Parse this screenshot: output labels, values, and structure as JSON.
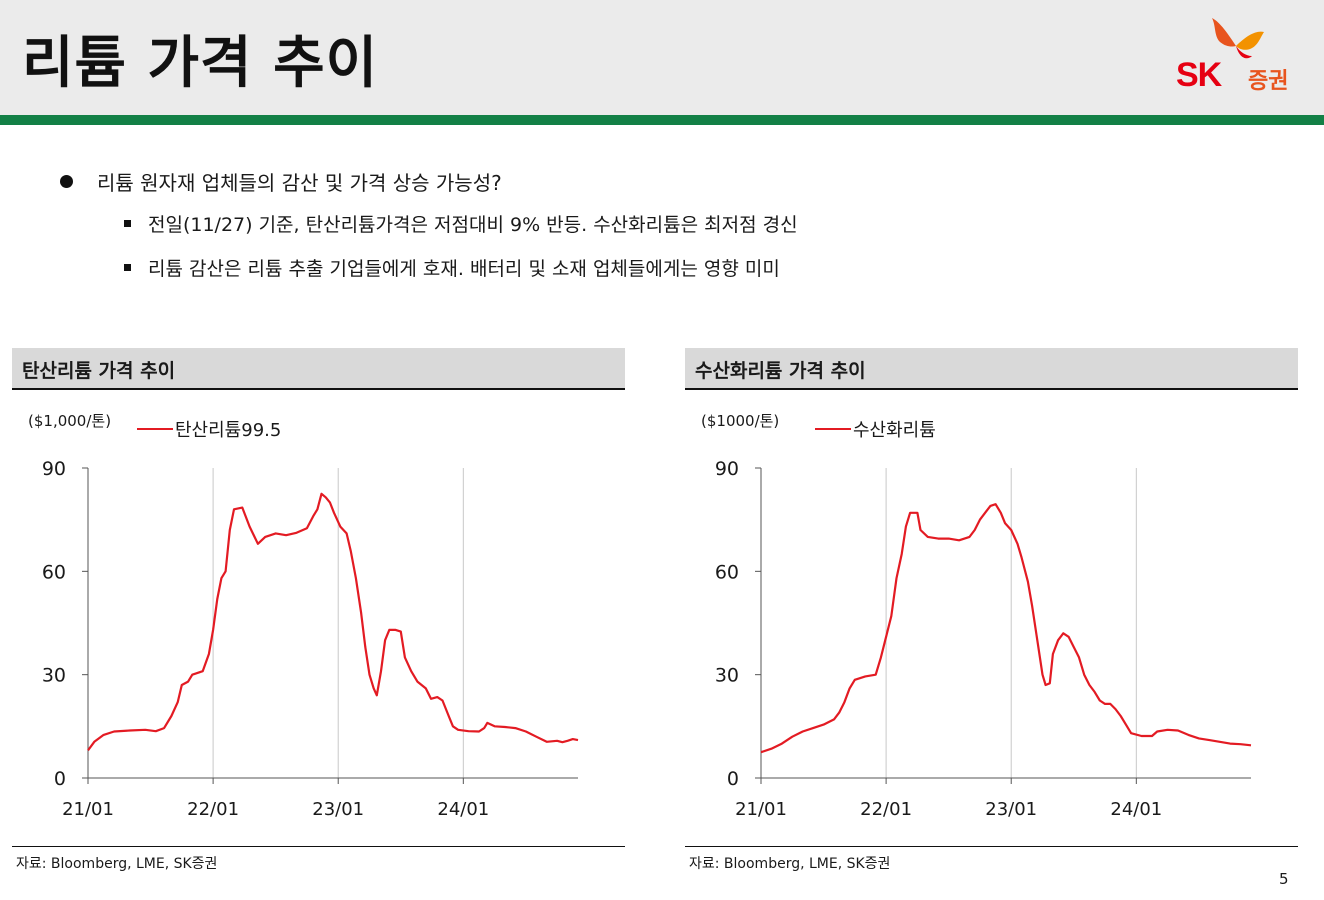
{
  "header": {
    "title": "리튬 가격 추이"
  },
  "logo": {
    "sk": "SK",
    "sec": "증권",
    "brand_red": "#e60012",
    "brand_orange": "#f39200",
    "icon": "butterfly-icon"
  },
  "accent": {
    "green": "#138046",
    "series_red": "#e31b23"
  },
  "bullets": {
    "main": "리튬 원자재 업체들의 감산 및 가격 상승 가능성?",
    "sub": [
      "전일(11/27) 기준, 탄산리튬가격은 저점대비 9% 반등. 수산화리튬은 최저점 경신",
      "리튬 감산은 리튬 추출 기업들에게 호재. 배터리 및 소재 업체들에게는 영향 미미"
    ]
  },
  "page_number": "5",
  "chart_data": [
    {
      "type": "line",
      "title": "탄산리튬 가격 추이",
      "unit_label": "($1,000/톤)",
      "ylabel": "($1,000/톤)",
      "xlabel": "",
      "ylim": [
        0,
        90
      ],
      "yticks": [
        0,
        30,
        60,
        90
      ],
      "xlim": [
        0,
        47
      ],
      "xticks": [
        {
          "x": 0,
          "label": "21/01"
        },
        {
          "x": 12,
          "label": "22/01"
        },
        {
          "x": 24,
          "label": "23/01"
        },
        {
          "x": 36,
          "label": "24/01"
        }
      ],
      "grid": "vertical",
      "source": "자료: Bloomberg, LME, SK증권",
      "series": [
        {
          "name": "탄산리튬99.5",
          "color": "#e31b23",
          "points": [
            [
              0,
              8
            ],
            [
              0.6,
              10.5
            ],
            [
              1.5,
              12.5
            ],
            [
              2.5,
              13.5
            ],
            [
              4,
              13.8
            ],
            [
              5.5,
              14
            ],
            [
              6.5,
              13.6
            ],
            [
              7.3,
              14.5
            ],
            [
              8,
              18
            ],
            [
              8.6,
              22
            ],
            [
              9,
              27
            ],
            [
              9.6,
              28
            ],
            [
              10,
              30
            ],
            [
              11,
              31
            ],
            [
              11.6,
              36
            ],
            [
              12,
              43
            ],
            [
              12.4,
              52
            ],
            [
              12.8,
              58
            ],
            [
              13.2,
              60
            ],
            [
              13.6,
              72
            ],
            [
              14,
              78
            ],
            [
              14.8,
              78.5
            ],
            [
              15.5,
              73
            ],
            [
              16.3,
              68
            ],
            [
              17,
              70
            ],
            [
              18,
              71
            ],
            [
              19,
              70.5
            ],
            [
              20,
              71.2
            ],
            [
              21,
              72.5
            ],
            [
              21.6,
              76
            ],
            [
              22,
              78
            ],
            [
              22.4,
              82.5
            ],
            [
              22.8,
              81.5
            ],
            [
              23.2,
              80
            ],
            [
              23.6,
              77
            ],
            [
              24.2,
              73
            ],
            [
              24.8,
              71
            ],
            [
              25.2,
              66
            ],
            [
              25.7,
              58
            ],
            [
              26.2,
              48
            ],
            [
              26.6,
              38
            ],
            [
              27,
              30
            ],
            [
              27.4,
              26
            ],
            [
              27.7,
              24
            ],
            [
              28.1,
              31
            ],
            [
              28.5,
              40
            ],
            [
              28.9,
              43
            ],
            [
              29.5,
              43
            ],
            [
              30,
              42.5
            ],
            [
              30.4,
              35
            ],
            [
              31,
              31
            ],
            [
              31.6,
              28
            ],
            [
              32.4,
              26
            ],
            [
              32.9,
              23
            ],
            [
              33.5,
              23.5
            ],
            [
              34,
              22.5
            ],
            [
              34.6,
              18
            ],
            [
              35,
              15
            ],
            [
              35.5,
              14
            ],
            [
              36.5,
              13.6
            ],
            [
              37.5,
              13.5
            ],
            [
              38,
              14.5
            ],
            [
              38.3,
              16
            ],
            [
              39,
              15
            ],
            [
              40,
              14.8
            ],
            [
              41,
              14.5
            ],
            [
              42,
              13.5
            ],
            [
              43,
              12
            ],
            [
              44,
              10.5
            ],
            [
              45,
              10.8
            ],
            [
              45.5,
              10.4
            ],
            [
              46,
              10.8
            ],
            [
              46.5,
              11.3
            ],
            [
              47,
              11
            ]
          ]
        }
      ]
    },
    {
      "type": "line",
      "title": "수산화리튬 가격 추이",
      "unit_label": "($1000/톤)",
      "ylabel": "($1000/톤)",
      "xlabel": "",
      "ylim": [
        0,
        90
      ],
      "yticks": [
        0,
        30,
        60,
        90
      ],
      "xlim": [
        0,
        47
      ],
      "xticks": [
        {
          "x": 0,
          "label": "21/01"
        },
        {
          "x": 12,
          "label": "22/01"
        },
        {
          "x": 24,
          "label": "23/01"
        },
        {
          "x": 36,
          "label": "24/01"
        }
      ],
      "grid": "vertical",
      "source": "자료: Bloomberg, LME, SK증권",
      "series": [
        {
          "name": "수산화리튬",
          "color": "#e31b23",
          "points": [
            [
              0,
              7.5
            ],
            [
              1,
              8.5
            ],
            [
              2,
              10
            ],
            [
              3,
              12
            ],
            [
              4,
              13.5
            ],
            [
              5,
              14.5
            ],
            [
              6,
              15.5
            ],
            [
              7,
              17
            ],
            [
              7.5,
              19
            ],
            [
              8,
              22
            ],
            [
              8.5,
              26
            ],
            [
              9,
              28.5
            ],
            [
              10,
              29.5
            ],
            [
              11,
              30
            ],
            [
              11.5,
              35
            ],
            [
              12,
              41
            ],
            [
              12.5,
              47
            ],
            [
              13,
              58
            ],
            [
              13.5,
              65
            ],
            [
              13.9,
              73
            ],
            [
              14.3,
              77
            ],
            [
              15,
              77
            ],
            [
              15.3,
              72
            ],
            [
              16,
              70
            ],
            [
              17,
              69.5
            ],
            [
              18,
              69.5
            ],
            [
              19,
              69
            ],
            [
              20,
              70
            ],
            [
              20.5,
              72
            ],
            [
              21,
              75
            ],
            [
              21.5,
              77
            ],
            [
              22,
              79
            ],
            [
              22.5,
              79.5
            ],
            [
              23,
              77
            ],
            [
              23.4,
              74
            ],
            [
              24,
              72
            ],
            [
              24.6,
              68
            ],
            [
              25,
              64
            ],
            [
              25.6,
              57
            ],
            [
              26,
              50
            ],
            [
              26.5,
              40
            ],
            [
              27,
              30
            ],
            [
              27.3,
              27
            ],
            [
              27.7,
              27.5
            ],
            [
              28,
              36
            ],
            [
              28.5,
              40
            ],
            [
              29,
              42
            ],
            [
              29.5,
              41
            ],
            [
              30,
              38
            ],
            [
              30.5,
              35
            ],
            [
              31,
              30
            ],
            [
              31.5,
              27
            ],
            [
              32,
              25
            ],
            [
              32.5,
              22.5
            ],
            [
              33,
              21.5
            ],
            [
              33.5,
              21.5
            ],
            [
              34,
              20
            ],
            [
              34.5,
              18
            ],
            [
              35,
              15.5
            ],
            [
              35.5,
              13
            ],
            [
              36.5,
              12.2
            ],
            [
              37.5,
              12.2
            ],
            [
              38,
              13.5
            ],
            [
              39,
              14
            ],
            [
              40,
              13.8
            ],
            [
              41,
              12.5
            ],
            [
              42,
              11.5
            ],
            [
              43,
              11
            ],
            [
              44,
              10.5
            ],
            [
              45,
              10
            ],
            [
              46,
              9.8
            ],
            [
              47,
              9.5
            ]
          ]
        }
      ]
    }
  ]
}
